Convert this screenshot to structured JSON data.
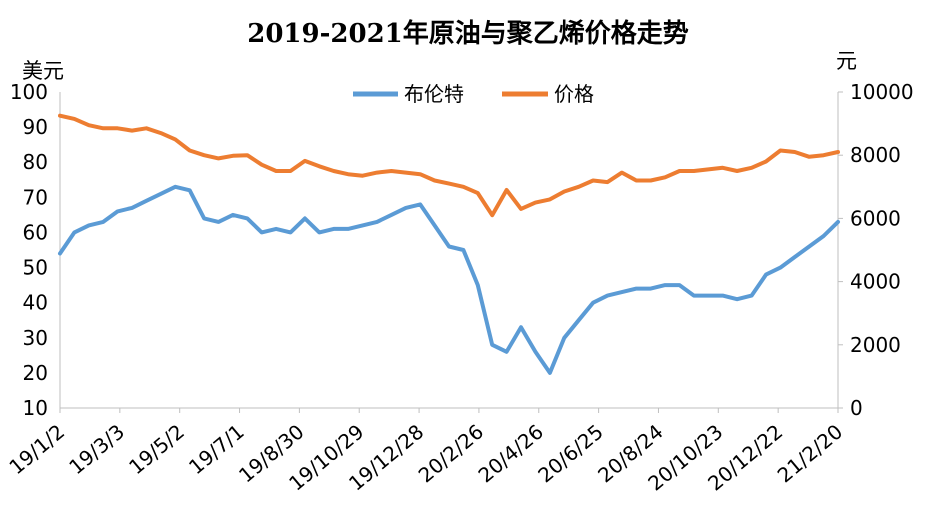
{
  "chart_data": {
    "type": "line",
    "title": "2019-2021年原油与聚乙烯价格走势",
    "y_left_unit": "美元",
    "y_right_unit": "元",
    "y_left_range": [
      10,
      100
    ],
    "y_right_range": [
      0,
      10000
    ],
    "y_left_ticks": [
      "100",
      "90",
      "80",
      "70",
      "60",
      "50",
      "40",
      "30",
      "20",
      "10"
    ],
    "y_right_ticks": [
      "10000",
      "8000",
      "6000",
      "4000",
      "2000",
      "0"
    ],
    "x_tick_labels": [
      "19/1/2",
      "19/3/3",
      "19/5/2",
      "19/7/1",
      "19/8/30",
      "19/10/29",
      "19/12/28",
      "20/2/26",
      "20/4/26",
      "20/6/25",
      "20/8/24",
      "20/10/23",
      "20/12/22",
      "21/2/20"
    ],
    "legend_position": "top-center",
    "grid": false,
    "series": [
      {
        "name": "布伦特",
        "axis": "left",
        "color": "#5b9bd5",
        "x": [
          "19/1/2",
          "19/1/16",
          "19/2/1",
          "19/2/15",
          "19/3/3",
          "19/3/18",
          "19/4/2",
          "19/4/17",
          "19/5/2",
          "19/5/17",
          "19/6/1",
          "19/6/16",
          "19/7/1",
          "19/7/16",
          "19/8/1",
          "19/8/15",
          "19/8/30",
          "19/9/15",
          "19/9/30",
          "19/10/15",
          "19/10/29",
          "19/11/13",
          "19/11/28",
          "19/12/13",
          "19/12/28",
          "20/1/12",
          "20/1/27",
          "20/2/11",
          "20/2/26",
          "20/3/9",
          "20/3/20",
          "20/4/1",
          "20/4/10",
          "20/4/20",
          "20/4/26",
          "20/5/10",
          "20/5/25",
          "20/6/10",
          "20/6/25",
          "20/7/10",
          "20/7/25",
          "20/8/10",
          "20/8/24",
          "20/9/8",
          "20/9/23",
          "20/10/8",
          "20/10/23",
          "20/11/7",
          "20/11/22",
          "20/12/7",
          "20/12/22",
          "21/1/6",
          "21/1/21",
          "21/2/5",
          "21/2/20"
        ],
        "values": [
          54,
          60,
          62,
          63,
          66,
          67,
          69,
          71,
          73,
          72,
          64,
          63,
          65,
          64,
          60,
          61,
          60,
          64,
          60,
          61,
          61,
          62,
          63,
          65,
          67,
          68,
          62,
          56,
          55,
          45,
          28,
          26,
          33,
          26,
          20,
          30,
          35,
          40,
          42,
          43,
          44,
          44,
          45,
          45,
          42,
          42,
          42,
          41,
          42,
          48,
          50,
          53,
          56,
          59,
          63
        ]
      },
      {
        "name": "价格",
        "axis": "right",
        "color": "#ed7d31",
        "x": [
          "19/1/2",
          "19/1/16",
          "19/2/1",
          "19/2/15",
          "19/3/3",
          "19/3/18",
          "19/4/2",
          "19/4/17",
          "19/5/2",
          "19/5/17",
          "19/6/1",
          "19/6/16",
          "19/7/1",
          "19/7/16",
          "19/8/1",
          "19/8/15",
          "19/8/30",
          "19/9/15",
          "19/9/30",
          "19/10/15",
          "19/10/29",
          "19/11/13",
          "19/11/28",
          "19/12/13",
          "19/12/28",
          "20/1/12",
          "20/1/27",
          "20/2/11",
          "20/2/26",
          "20/3/9",
          "20/3/20",
          "20/4/1",
          "20/4/10",
          "20/4/20",
          "20/4/26",
          "20/5/10",
          "20/5/25",
          "20/6/10",
          "20/6/25",
          "20/7/10",
          "20/7/25",
          "20/8/10",
          "20/8/24",
          "20/9/8",
          "20/9/23",
          "20/10/8",
          "20/10/23",
          "20/11/7",
          "20/11/22",
          "20/12/7",
          "20/12/22",
          "21/1/6",
          "21/1/21",
          "21/2/5",
          "21/2/20"
        ],
        "values": [
          9250,
          9150,
          8950,
          8850,
          8850,
          8780,
          8850,
          8700,
          8500,
          8150,
          8000,
          7900,
          7980,
          8000,
          7700,
          7500,
          7500,
          7820,
          7650,
          7500,
          7400,
          7350,
          7450,
          7500,
          7450,
          7400,
          7200,
          7100,
          7000,
          6800,
          6100,
          6900,
          6300,
          6500,
          6600,
          6850,
          7000,
          7200,
          7150,
          7450,
          7200,
          7200,
          7300,
          7500,
          7500,
          7550,
          7600,
          7500,
          7600,
          7800,
          8150,
          8100,
          7950,
          8000,
          8100
        ]
      }
    ]
  }
}
